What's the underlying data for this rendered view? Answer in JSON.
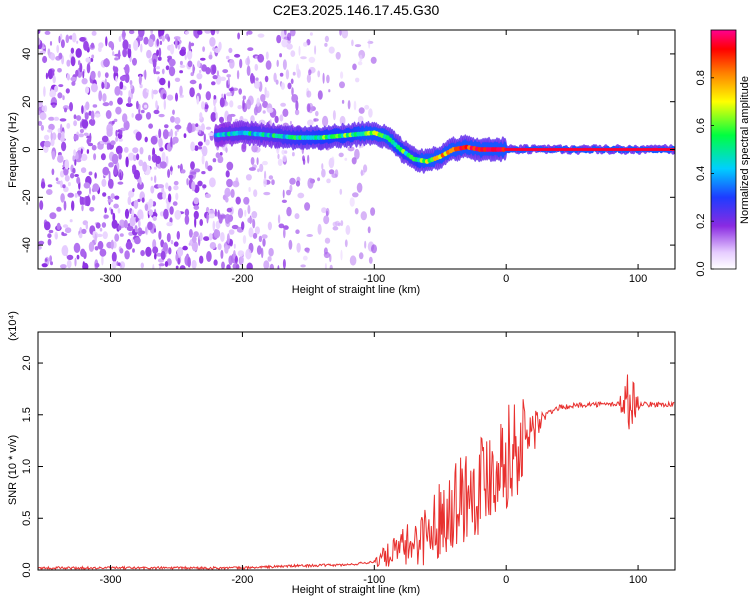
{
  "title": "C2E3.2025.146.17.45.G30",
  "chart_data": [
    {
      "type": "heatmap",
      "xlabel": "Height of straight line (km)",
      "ylabel": "Frequency (Hz)",
      "xlim": [
        -355,
        128
      ],
      "ylim": [
        -50,
        50
      ],
      "xticks": [
        -300,
        -200,
        -100,
        0,
        100
      ],
      "xtick_labels": [
        "-300",
        "-200",
        "-100",
        "0",
        "100"
      ],
      "yticks": [
        -40,
        -20,
        0,
        20,
        40
      ],
      "ytick_labels": [
        "-40",
        "-20",
        "0",
        "20",
        "40"
      ],
      "colorbar": {
        "label": "Normalized spectral amplitude",
        "range": [
          0,
          1
        ],
        "ticks": [
          0.0,
          0.2,
          0.4,
          0.6,
          0.8
        ],
        "tick_labels": [
          "0.0",
          "0.2",
          "0.4",
          "0.6",
          "0.8"
        ],
        "colors": [
          "#ffffff",
          "#d9b3ff",
          "#7a1fe0",
          "#1e3cff",
          "#00d0ff",
          "#00ff00",
          "#ffff00",
          "#ff7f00",
          "#ff0000",
          "#ff00a0"
        ]
      },
      "ridge": {
        "x": [
          -220,
          -200,
          -180,
          -160,
          -140,
          -120,
          -100,
          -90,
          -80,
          -70,
          -60,
          -50,
          -40,
          -30,
          -20,
          -10,
          0,
          20,
          60,
          100,
          128
        ],
        "y": [
          6,
          7,
          6,
          5,
          5,
          6,
          7,
          5,
          0,
          -4,
          -5,
          -3,
          0,
          1,
          0,
          0,
          0,
          0,
          0,
          0,
          0
        ],
        "peak_amplitude": [
          0.35,
          0.4,
          0.4,
          0.45,
          0.5,
          0.5,
          0.55,
          0.55,
          0.5,
          0.45,
          0.6,
          0.7,
          0.8,
          0.85,
          0.9,
          0.9,
          0.95,
          0.95,
          0.95,
          0.95,
          0.95
        ]
      },
      "noise_region_x": [
        -355,
        -100
      ]
    },
    {
      "type": "line",
      "xlabel": "Height of straight line (km)",
      "ylabel": "SNR (10 * v/v)",
      "y_multiplier_label": "(x10⁴)",
      "xlim": [
        -355,
        128
      ],
      "ylim": [
        0,
        2.3
      ],
      "xticks": [
        -300,
        -200,
        -100,
        0,
        100
      ],
      "xtick_labels": [
        "-300",
        "-200",
        "-100",
        "0",
        "100"
      ],
      "yticks": [
        0.0,
        0.5,
        1.0,
        1.5,
        2.0
      ],
      "ytick_labels": [
        "0.0",
        "0.5",
        "1.0",
        "1.5",
        "2.0"
      ],
      "series": [
        {
          "color": "#e8302e",
          "x": [
            -355,
            -300,
            -250,
            -200,
            -160,
            -120,
            -100,
            -80,
            -60,
            -50,
            -40,
            -30,
            -20,
            -10,
            0,
            10,
            20,
            30,
            40,
            60,
            80,
            90,
            95,
            100,
            110,
            128
          ],
          "y": [
            0.02,
            0.02,
            0.02,
            0.02,
            0.04,
            0.05,
            0.08,
            0.2,
            0.35,
            0.5,
            0.65,
            0.75,
            0.85,
            1.0,
            1.1,
            1.2,
            1.35,
            1.5,
            1.57,
            1.6,
            1.6,
            1.62,
            1.65,
            1.6,
            1.6,
            1.6
          ]
        }
      ]
    }
  ]
}
